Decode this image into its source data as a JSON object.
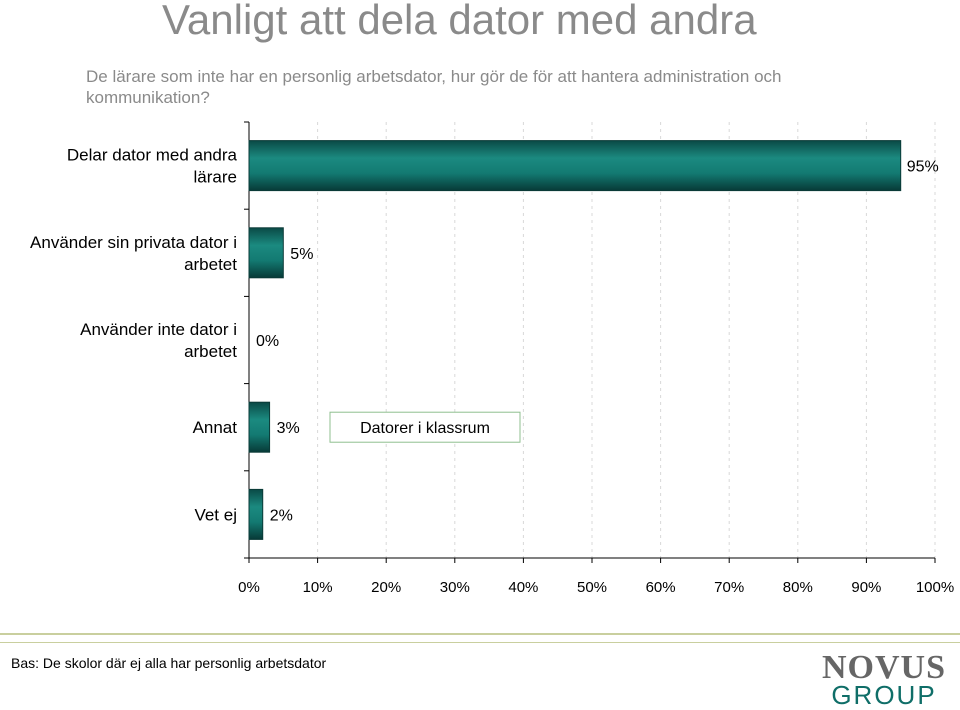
{
  "page": {
    "title": "Vanligt att dela dator med andra",
    "subtitle": "De lärare som inte har en personlig arbetsdator, hur gör de för att hantera administration och kommunikation?",
    "base_note": "Bas: De skolor där ej alla har personlig arbetsdator",
    "logo": {
      "top": "NOVUS",
      "bottom": "GROUP"
    }
  },
  "chart_data": {
    "type": "bar",
    "orientation": "horizontal",
    "categories": [
      [
        "Delar dator med andra",
        "lärare"
      ],
      [
        "Använder sin privata dator i",
        "arbetet"
      ],
      [
        "Använder inte dator i",
        "arbetet"
      ],
      [
        "Annat"
      ],
      [
        "Vet ej"
      ]
    ],
    "values": [
      95,
      5,
      0,
      3,
      2
    ],
    "value_labels": [
      "95%",
      "5%",
      "0%",
      "3%",
      "2%"
    ],
    "xlim": [
      0,
      100
    ],
    "xticks": [
      "0%",
      "10%",
      "20%",
      "30%",
      "40%",
      "50%",
      "60%",
      "70%",
      "80%",
      "90%",
      "100%"
    ],
    "grid": "vertical dashed",
    "bar_color": "#0f6e68",
    "annotation": {
      "text": "Datorer i klassrum",
      "category": "Annat"
    }
  }
}
